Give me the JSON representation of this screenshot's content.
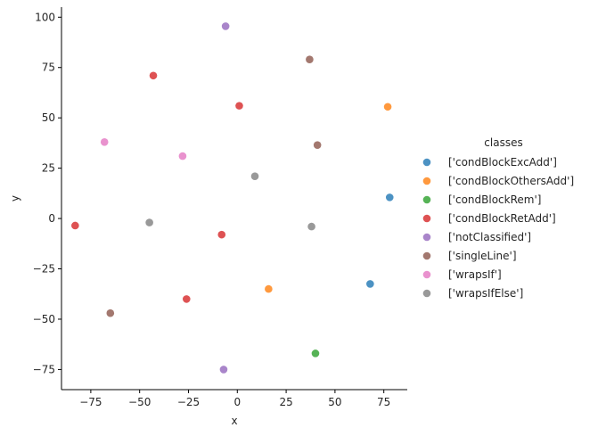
{
  "chart_data": {
    "type": "scatter",
    "xlabel": "x",
    "ylabel": "y",
    "xlim": [
      -90,
      87
    ],
    "ylim": [
      -85,
      105
    ],
    "xticks": [
      -75,
      -50,
      -25,
      0,
      25,
      50,
      75
    ],
    "yticks": [
      -75,
      -50,
      -25,
      0,
      25,
      50,
      75,
      100
    ],
    "legend_title": "classes",
    "legend_position": "right",
    "grid": false,
    "series": [
      {
        "name": "['condBlockExcAdd']",
        "color": "#1f77b4",
        "points": [
          [
            78,
            10.5
          ],
          [
            68,
            -32.5
          ]
        ]
      },
      {
        "name": "['condBlockOthersAdd']",
        "color": "#ff7f0e",
        "points": [
          [
            77,
            55.5
          ],
          [
            16,
            -35
          ]
        ]
      },
      {
        "name": "['condBlockRem']",
        "color": "#2ca02c",
        "points": [
          [
            40,
            -67
          ]
        ]
      },
      {
        "name": "['condBlockRetAdd']",
        "color": "#d62728",
        "points": [
          [
            -43,
            71
          ],
          [
            1,
            56
          ],
          [
            -83,
            -3.5
          ],
          [
            -8,
            -8
          ],
          [
            -26,
            -40
          ]
        ]
      },
      {
        "name": "['notClassified']",
        "color": "#9467bd",
        "points": [
          [
            -6,
            95.5
          ],
          [
            -7,
            -75
          ]
        ]
      },
      {
        "name": "['singleLine']",
        "color": "#8c564b",
        "points": [
          [
            37,
            79
          ],
          [
            41,
            36.5
          ],
          [
            -65,
            -47
          ]
        ]
      },
      {
        "name": "['wrapsIf']",
        "color": "#e377c2",
        "points": [
          [
            -68,
            38
          ],
          [
            -28,
            31
          ]
        ]
      },
      {
        "name": "['wrapsIfElse']",
        "color": "#7f7f7f",
        "points": [
          [
            9,
            21
          ],
          [
            -45,
            -2
          ],
          [
            38,
            -4
          ]
        ]
      }
    ]
  }
}
